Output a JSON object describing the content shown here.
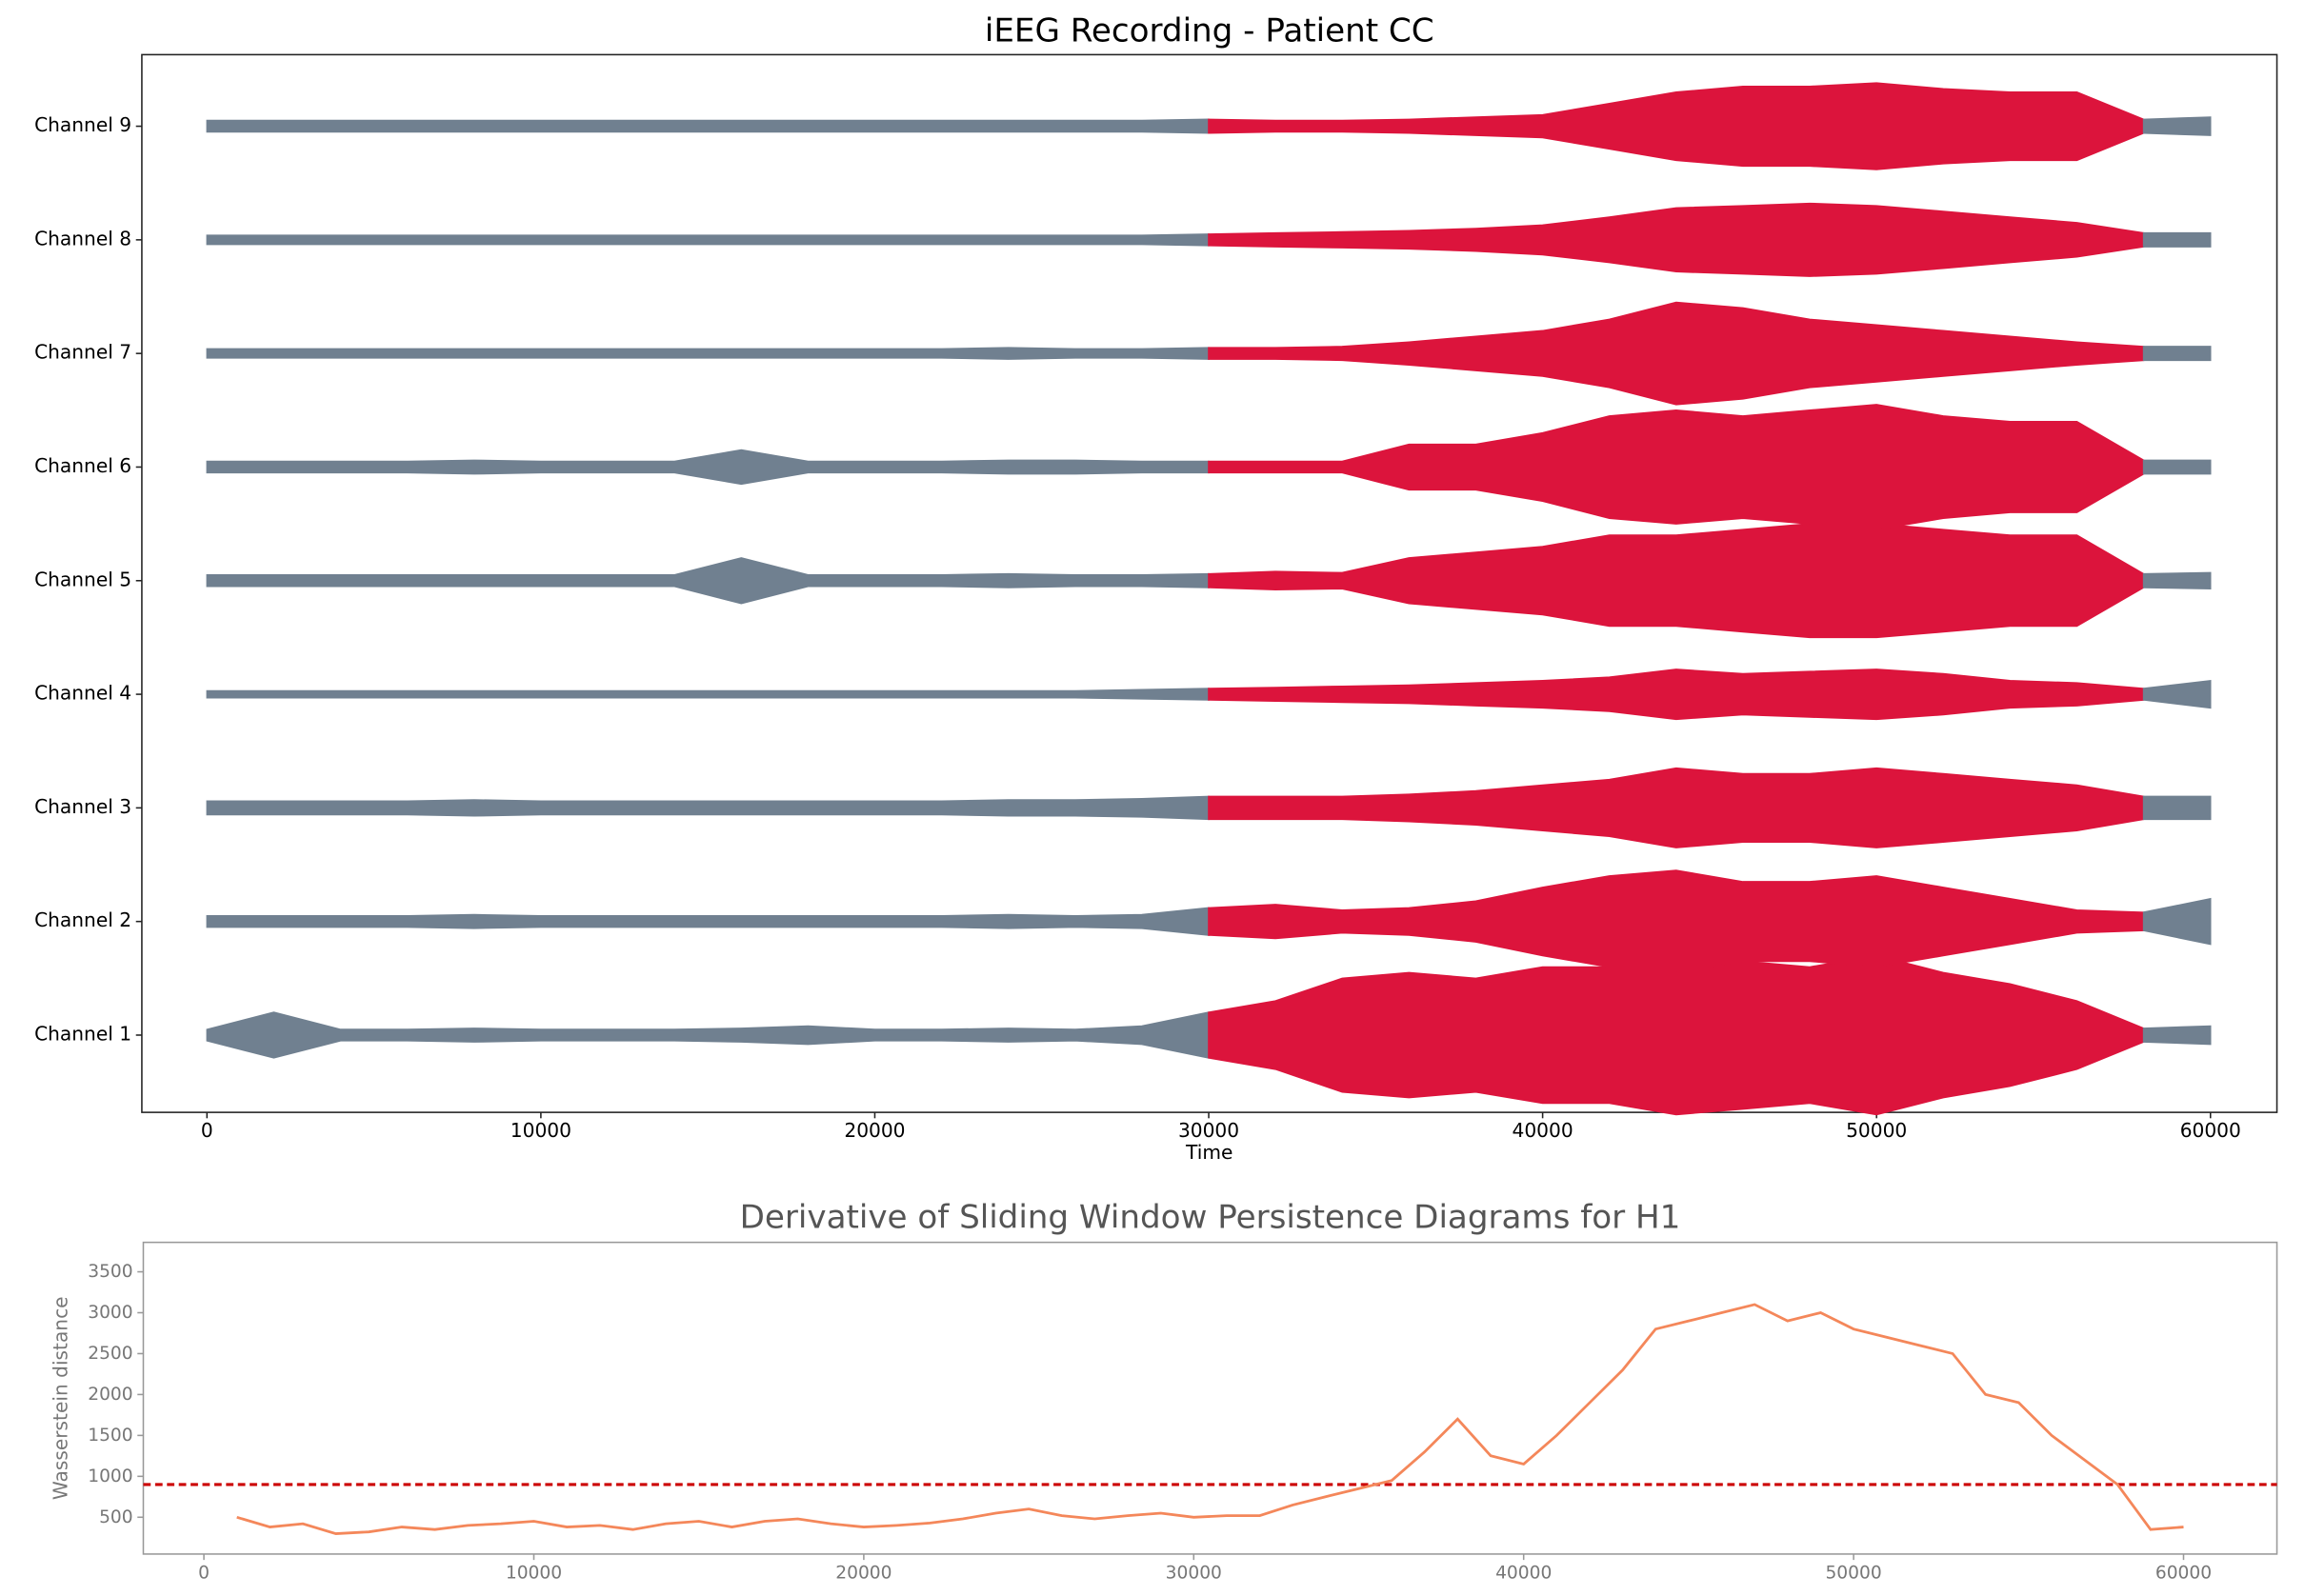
{
  "chart_data": [
    {
      "type": "area",
      "title": "iEEG Recording - Patient CC",
      "x_label": "Time",
      "x": [
        0,
        2000,
        4000,
        6000,
        8000,
        10000,
        12000,
        14000,
        16000,
        18000,
        20000,
        22000,
        24000,
        26000,
        28000,
        30000,
        32000,
        34000,
        36000,
        38000,
        40000,
        42000,
        44000,
        46000,
        48000,
        50000,
        52000,
        54000,
        56000,
        58000,
        60000
      ],
      "color": "#708090",
      "highlight": {
        "xlim": [
          30000,
          58000
        ],
        "color": "#dc143c"
      },
      "series": [
        {
          "values": [
            0.05,
            0.2,
            0.05,
            0.05,
            0.06,
            0.05,
            0.05,
            0.05,
            0.06,
            0.08,
            0.05,
            0.05,
            0.06,
            0.05,
            0.08,
            0.2,
            0.3,
            0.5,
            0.55,
            0.5,
            0.6,
            0.6,
            0.7,
            0.65,
            0.6,
            0.7,
            0.55,
            0.45,
            0.3,
            0.06,
            0.08
          ]
        },
        {
          "values": [
            0.05,
            0.05,
            0.05,
            0.05,
            0.06,
            0.05,
            0.05,
            0.05,
            0.05,
            0.05,
            0.05,
            0.05,
            0.06,
            0.05,
            0.06,
            0.12,
            0.15,
            0.1,
            0.12,
            0.18,
            0.3,
            0.4,
            0.45,
            0.35,
            0.35,
            0.4,
            0.3,
            0.2,
            0.1,
            0.08,
            0.2
          ]
        },
        {
          "values": [
            0.06,
            0.06,
            0.06,
            0.06,
            0.07,
            0.06,
            0.06,
            0.06,
            0.06,
            0.06,
            0.06,
            0.06,
            0.07,
            0.07,
            0.08,
            0.1,
            0.1,
            0.1,
            0.12,
            0.15,
            0.2,
            0.25,
            0.35,
            0.3,
            0.3,
            0.35,
            0.3,
            0.25,
            0.2,
            0.1,
            0.1
          ]
        },
        {
          "values": [
            0.03,
            0.03,
            0.03,
            0.03,
            0.03,
            0.03,
            0.03,
            0.03,
            0.03,
            0.03,
            0.03,
            0.03,
            0.03,
            0.03,
            0.04,
            0.05,
            0.06,
            0.07,
            0.08,
            0.1,
            0.12,
            0.15,
            0.22,
            0.18,
            0.2,
            0.22,
            0.18,
            0.12,
            0.1,
            0.05,
            0.12
          ]
        },
        {
          "values": [
            0.05,
            0.05,
            0.05,
            0.05,
            0.05,
            0.05,
            0.05,
            0.05,
            0.2,
            0.05,
            0.05,
            0.05,
            0.06,
            0.05,
            0.05,
            0.06,
            0.08,
            0.07,
            0.2,
            0.25,
            0.3,
            0.4,
            0.4,
            0.45,
            0.5,
            0.5,
            0.45,
            0.4,
            0.4,
            0.06,
            0.07
          ]
        },
        {
          "values": [
            0.05,
            0.05,
            0.05,
            0.05,
            0.06,
            0.05,
            0.05,
            0.05,
            0.15,
            0.05,
            0.05,
            0.05,
            0.06,
            0.06,
            0.05,
            0.05,
            0.05,
            0.05,
            0.2,
            0.2,
            0.3,
            0.45,
            0.5,
            0.45,
            0.5,
            0.55,
            0.45,
            0.4,
            0.4,
            0.06,
            0.06
          ]
        },
        {
          "values": [
            0.04,
            0.04,
            0.04,
            0.04,
            0.04,
            0.04,
            0.04,
            0.04,
            0.04,
            0.04,
            0.04,
            0.04,
            0.05,
            0.04,
            0.04,
            0.05,
            0.05,
            0.06,
            0.1,
            0.15,
            0.2,
            0.3,
            0.45,
            0.4,
            0.3,
            0.25,
            0.2,
            0.15,
            0.1,
            0.06,
            0.06
          ]
        },
        {
          "values": [
            0.04,
            0.04,
            0.04,
            0.04,
            0.04,
            0.04,
            0.04,
            0.04,
            0.04,
            0.04,
            0.04,
            0.04,
            0.04,
            0.04,
            0.04,
            0.05,
            0.06,
            0.07,
            0.08,
            0.1,
            0.13,
            0.2,
            0.28,
            0.3,
            0.32,
            0.3,
            0.25,
            0.2,
            0.15,
            0.06,
            0.06
          ]
        },
        {
          "values": [
            0.05,
            0.05,
            0.05,
            0.05,
            0.05,
            0.05,
            0.05,
            0.05,
            0.05,
            0.05,
            0.05,
            0.05,
            0.05,
            0.05,
            0.05,
            0.06,
            0.05,
            0.05,
            0.06,
            0.08,
            0.1,
            0.2,
            0.3,
            0.35,
            0.35,
            0.38,
            0.33,
            0.3,
            0.3,
            0.06,
            0.08
          ]
        }
      ],
      "xlim": [
        -1950,
        61990
      ],
      "xticks": [
        0,
        10000,
        20000,
        30000,
        40000,
        50000,
        60000
      ],
      "ylim": [
        0.32,
        9.63
      ],
      "yticks": [
        {
          "value": 1,
          "label": "Channel 1"
        },
        {
          "value": 2,
          "label": "Channel 2"
        },
        {
          "value": 3,
          "label": "Channel 3"
        },
        {
          "value": 4,
          "label": "Channel 4"
        },
        {
          "value": 5,
          "label": "Channel 5"
        },
        {
          "value": 6,
          "label": "Channel 6"
        },
        {
          "value": 7,
          "label": "Channel 7"
        },
        {
          "value": 8,
          "label": "Channel 8"
        },
        {
          "value": 9,
          "label": "Channel 9"
        }
      ]
    },
    {
      "type": "line",
      "title": "Derivative of Sliding Window Persistence Diagrams for H1",
      "y_label": "Wasserstein distance",
      "x": [
        1000,
        2000,
        3000,
        4000,
        5000,
        6000,
        7000,
        8000,
        9000,
        10000,
        11000,
        12000,
        13000,
        14000,
        15000,
        16000,
        17000,
        18000,
        19000,
        20000,
        21000,
        22000,
        23000,
        24000,
        25000,
        26000,
        27000,
        28000,
        29000,
        30000,
        31000,
        32000,
        33000,
        34000,
        35000,
        36000,
        37000,
        38000,
        39000,
        40000,
        41000,
        42000,
        43000,
        44000,
        45000,
        46000,
        47000,
        48000,
        49000,
        50000,
        51000,
        52000,
        53000,
        54000,
        55000,
        56000,
        57000,
        58000,
        59000,
        60000
      ],
      "series": [
        {
          "color": "#f4875a",
          "values": [
            500,
            380,
            420,
            300,
            320,
            380,
            350,
            400,
            420,
            450,
            380,
            400,
            350,
            420,
            450,
            380,
            450,
            480,
            420,
            380,
            400,
            430,
            480,
            550,
            600,
            520,
            480,
            520,
            550,
            500,
            520,
            520,
            650,
            750,
            850,
            950,
            1300,
            1700,
            1250,
            1150,
            1500,
            1900,
            2300,
            2800,
            2900,
            3000,
            3100,
            2900,
            3000,
            2800,
            2700,
            2600,
            2500,
            2000,
            1900,
            1500,
            1200,
            900,
            350,
            380
          ]
        }
      ],
      "hline": {
        "value": 900,
        "color": "#cc0000",
        "style": "dashed"
      },
      "xlim": [
        -1836,
        62830
      ],
      "xticks": [
        0,
        10000,
        20000,
        30000,
        40000,
        50000,
        60000
      ],
      "ylim": [
        50,
        3860
      ],
      "yticks": [
        500,
        1000,
        1500,
        2000,
        2500,
        3000,
        3500
      ]
    }
  ]
}
